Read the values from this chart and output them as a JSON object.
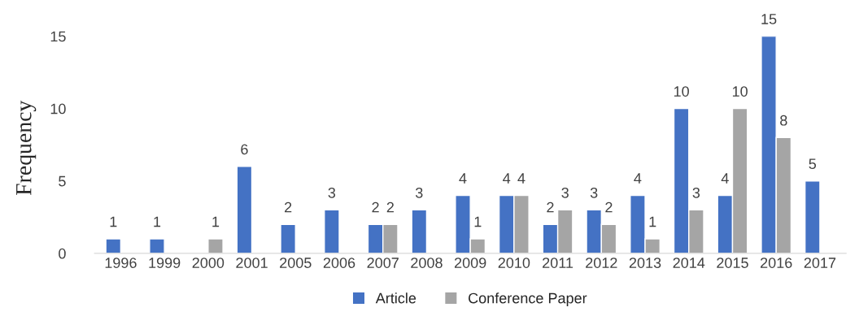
{
  "chart_data": {
    "type": "bar",
    "ylabel": "Frequency",
    "categories": [
      "1996",
      "1999",
      "2000",
      "2001",
      "2005",
      "2006",
      "2007",
      "2008",
      "2009",
      "2010",
      "2011",
      "2012",
      "2013",
      "2014",
      "2015",
      "2016",
      "2017"
    ],
    "series": [
      {
        "name": "Article",
        "color": "#4472c4",
        "values": [
          1,
          1,
          null,
          6,
          2,
          3,
          2,
          3,
          4,
          4,
          2,
          3,
          4,
          10,
          4,
          15,
          5
        ]
      },
      {
        "name": "Conference Paper",
        "color": "#a5a5a5",
        "values": [
          null,
          null,
          1,
          null,
          null,
          null,
          2,
          null,
          1,
          4,
          3,
          2,
          1,
          3,
          10,
          8,
          null
        ]
      }
    ],
    "ylim": [
      0,
      15
    ],
    "yticks": [
      0,
      5,
      10,
      15
    ],
    "grid": false,
    "legend": "bottom",
    "data_labels": true
  }
}
